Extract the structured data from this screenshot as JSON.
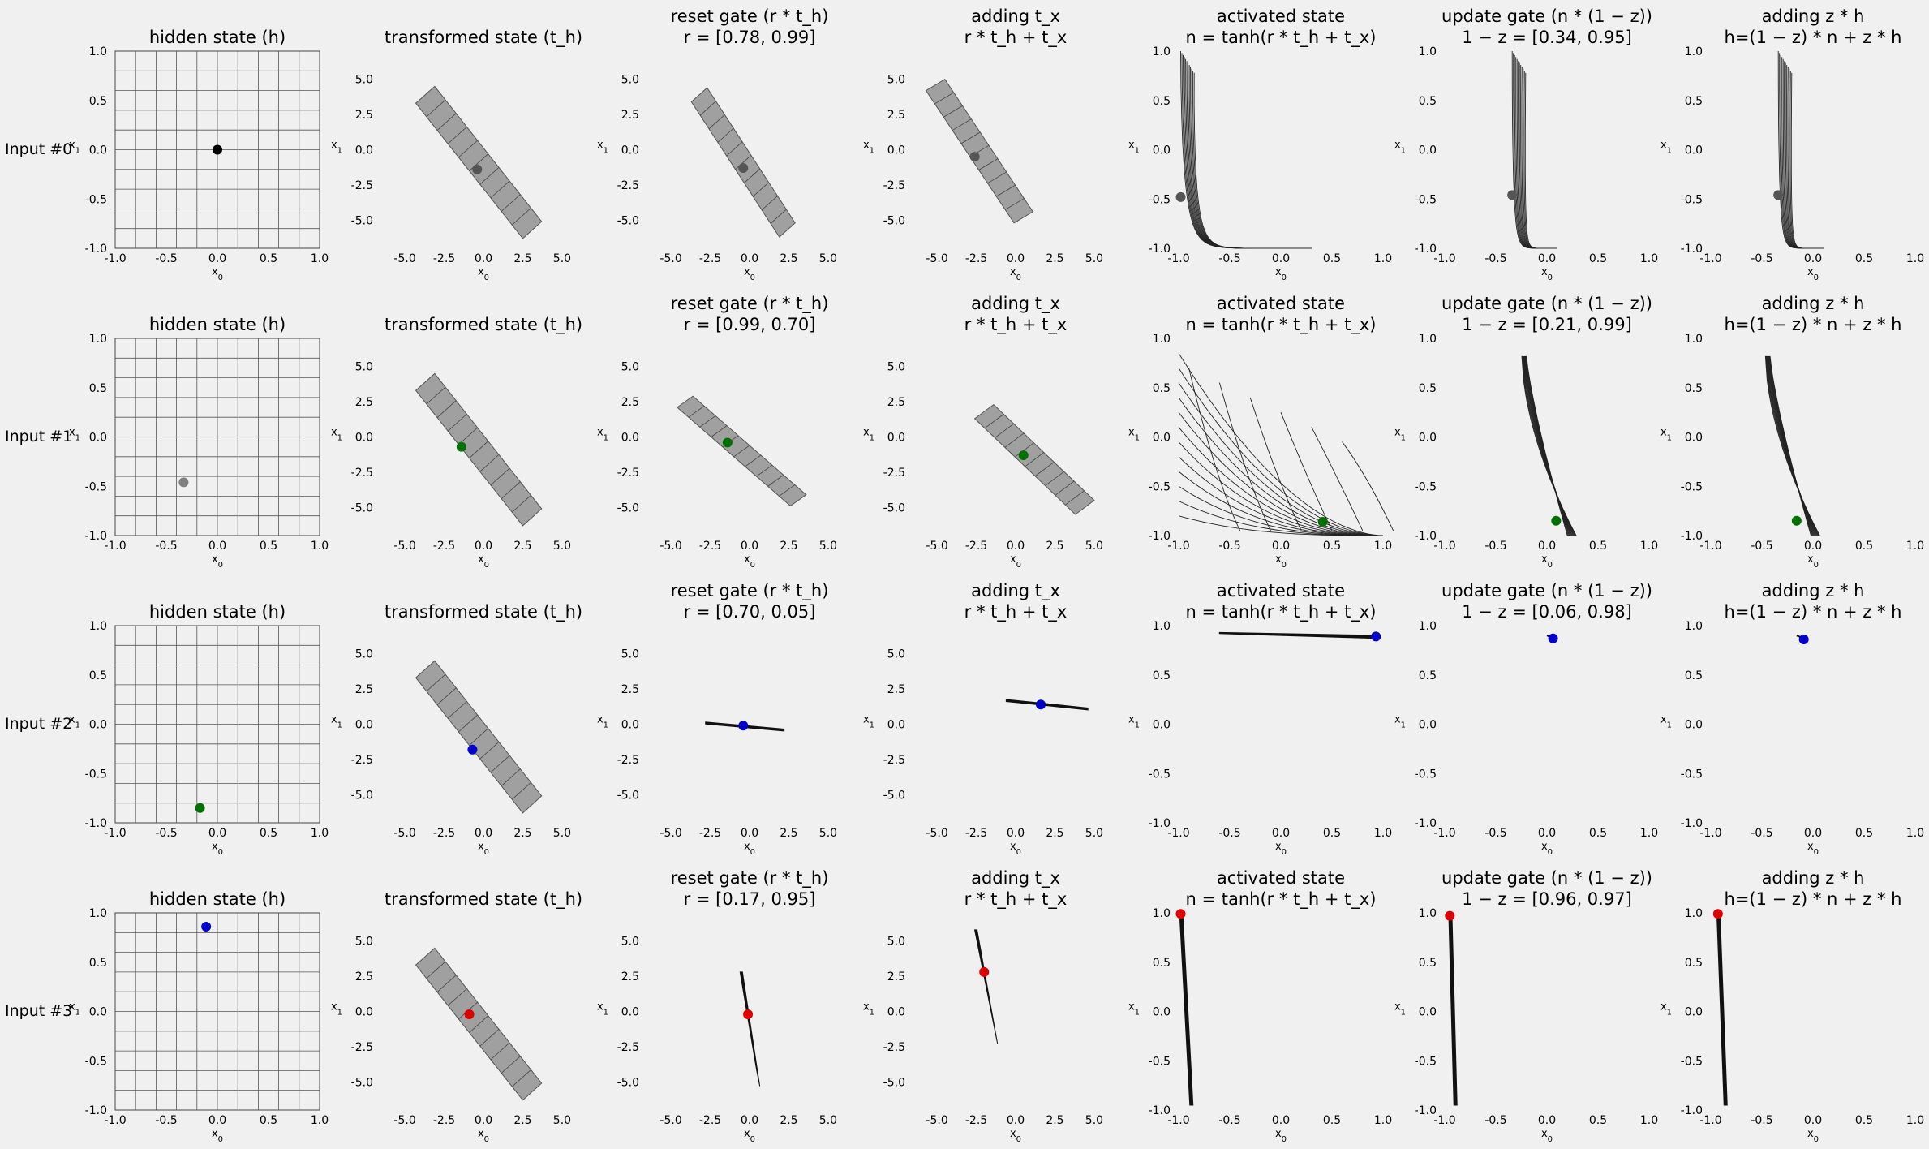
{
  "figure": {
    "row_labels": [
      "Input #0",
      "Input #1",
      "Input #2",
      "Input #3"
    ],
    "colors": {
      "background": "#f0f0f0",
      "input0": "#000000",
      "input1": "#007000",
      "input2": "#0000cc",
      "input3": "#dd0000",
      "previous_point": "#808080"
    }
  },
  "chart_data": {
    "type": "scatter",
    "note_style": "grid-of-panels",
    "columns": [
      {
        "key": "hidden",
        "title_lines": [
          "hidden state (h)"
        ],
        "xlim": [
          -1,
          1
        ],
        "ylim": [
          -1,
          1
        ],
        "xticks": [
          "-1.0",
          "-0.5",
          "0.0",
          "0.5",
          "1.0"
        ],
        "yticks": [
          "-1.0",
          "-0.5",
          "0.0",
          "0.5",
          "1.0"
        ]
      },
      {
        "key": "transformed",
        "title_lines": [
          "transformed state (t_h)"
        ],
        "xlim": [
          -6.5,
          6.5
        ],
        "ylim": [
          -7,
          7
        ],
        "xticks": [
          "-5.0",
          "-2.5",
          "0.0",
          "2.5",
          "5.0"
        ],
        "yticks": [
          "-5.0",
          "-2.5",
          "0.0",
          "2.5",
          "5.0"
        ]
      },
      {
        "key": "reset",
        "title_lines": [
          "reset gate (r * t_h)",
          "r = [{r0}, {r1}]"
        ],
        "xlim": [
          -6.5,
          6.5
        ],
        "ylim": [
          -7,
          7
        ],
        "xticks": [
          "-5.0",
          "-2.5",
          "0.0",
          "2.5",
          "5.0"
        ],
        "yticks": [
          "-5.0",
          "-2.5",
          "0.0",
          "2.5",
          "5.0"
        ]
      },
      {
        "key": "adding",
        "title_lines": [
          "adding t_x",
          "r * t_h + t_x"
        ],
        "xlim": [
          -6.5,
          6.5
        ],
        "ylim": [
          -7,
          7
        ],
        "xticks": [
          "-5.0",
          "-2.5",
          "0.0",
          "2.5",
          "5.0"
        ],
        "yticks": [
          "-5.0",
          "-2.5",
          "0.0",
          "2.5",
          "5.0"
        ]
      },
      {
        "key": "activated",
        "title_lines": [
          "activated state",
          "n = tanh(r * t_h + t_x)"
        ],
        "xlim": [
          -1,
          1
        ],
        "ylim": [
          -1,
          1
        ],
        "xticks": [
          "-1.0",
          "-0.5",
          "0.0",
          "0.5",
          "1.0"
        ],
        "yticks": [
          "-1.0",
          "-0.5",
          "0.0",
          "0.5",
          "1.0"
        ]
      },
      {
        "key": "update",
        "title_lines": [
          "update gate (n * (1 − z))",
          "1 − z = [{u0}, {u1}]"
        ],
        "xlim": [
          -1,
          1
        ],
        "ylim": [
          -1,
          1
        ],
        "xticks": [
          "-1.0",
          "-0.5",
          "0.0",
          "0.5",
          "1.0"
        ],
        "yticks": [
          "-1.0",
          "-0.5",
          "0.0",
          "0.5",
          "1.0"
        ]
      },
      {
        "key": "final",
        "title_lines": [
          "adding z * h",
          "h=(1 − z) * n + z * h"
        ],
        "xlim": [
          -1,
          1
        ],
        "ylim": [
          -1,
          1
        ],
        "xticks": [
          "-1.0",
          "-0.5",
          "0.0",
          "0.5",
          "1.0"
        ],
        "yticks": [
          "-1.0",
          "-0.5",
          "0.0",
          "0.5",
          "1.0"
        ]
      }
    ],
    "xlabel": "x0",
    "ylabel": "x1",
    "rows": [
      {
        "label": "Input #0",
        "color": "#000000",
        "r": [
          "0.78",
          "0.99"
        ],
        "one_minus_z": [
          "0.34",
          "0.95"
        ],
        "points": {
          "hidden": [
            0.0,
            0.0
          ],
          "transformed": [
            -0.4,
            -1.4
          ],
          "reset": [
            -0.4,
            -1.3
          ],
          "adding": [
            -2.6,
            -0.5
          ],
          "activated": [
            -0.98,
            -0.48
          ],
          "update": [
            -0.34,
            -0.46
          ],
          "final": [
            -0.34,
            -0.46
          ]
        },
        "point_color_override": "#555555"
      },
      {
        "label": "Input #1",
        "color": "#007000",
        "r": [
          "0.99",
          "0.70"
        ],
        "one_minus_z": [
          "0.21",
          "0.99"
        ],
        "points": {
          "hidden": [
            -0.33,
            -0.46
          ],
          "transformed": [
            -1.4,
            -0.7
          ],
          "reset": [
            -1.4,
            -0.4
          ],
          "adding": [
            0.5,
            -1.3
          ],
          "activated": [
            0.41,
            -0.86
          ],
          "update": [
            0.09,
            -0.85
          ],
          "final": [
            -0.16,
            -0.85
          ]
        }
      },
      {
        "label": "Input #2",
        "color": "#0000cc",
        "r": [
          "0.70",
          "0.05"
        ],
        "one_minus_z": [
          "0.06",
          "0.98"
        ],
        "points": {
          "hidden": [
            -0.17,
            -0.85
          ],
          "transformed": [
            -0.7,
            -1.8
          ],
          "reset": [
            -0.4,
            -0.1
          ],
          "adding": [
            1.6,
            1.4
          ],
          "activated": [
            0.93,
            0.89
          ],
          "update": [
            0.06,
            0.87
          ],
          "final": [
            -0.09,
            0.86
          ]
        }
      },
      {
        "label": "Input #3",
        "color": "#dd0000",
        "r": [
          "0.17",
          "0.95"
        ],
        "one_minus_z": [
          "0.96",
          "0.97"
        ],
        "points": {
          "hidden": [
            -0.11,
            0.86
          ],
          "transformed": [
            -0.9,
            -0.2
          ],
          "reset": [
            -0.1,
            -0.2
          ],
          "adding": [
            -2.0,
            2.8
          ],
          "activated": [
            -0.98,
            0.99
          ],
          "update": [
            -0.95,
            0.97
          ],
          "final": [
            -0.93,
            0.99
          ]
        }
      }
    ]
  }
}
